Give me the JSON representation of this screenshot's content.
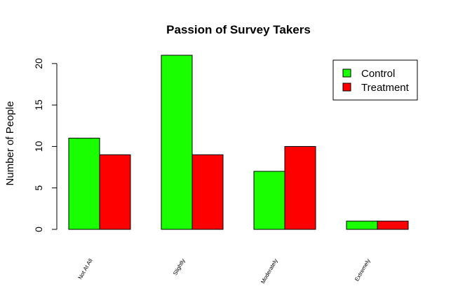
{
  "chart_data": {
    "type": "bar",
    "title": "Passion of Survey Takers",
    "xlabel": "",
    "ylabel": "Number of People",
    "categories": [
      "Not At All",
      "Slightly",
      "Moderately",
      "Extremely"
    ],
    "series": [
      {
        "name": "Control",
        "color": "#1aff00",
        "values": [
          11,
          21,
          7,
          1
        ]
      },
      {
        "name": "Treatment",
        "color": "#ff0000",
        "values": [
          9,
          9,
          10,
          1
        ]
      }
    ],
    "ylim": [
      0,
      21
    ],
    "yticks": [
      0,
      5,
      10,
      15,
      20
    ],
    "grid": false,
    "legend": "top-right"
  }
}
